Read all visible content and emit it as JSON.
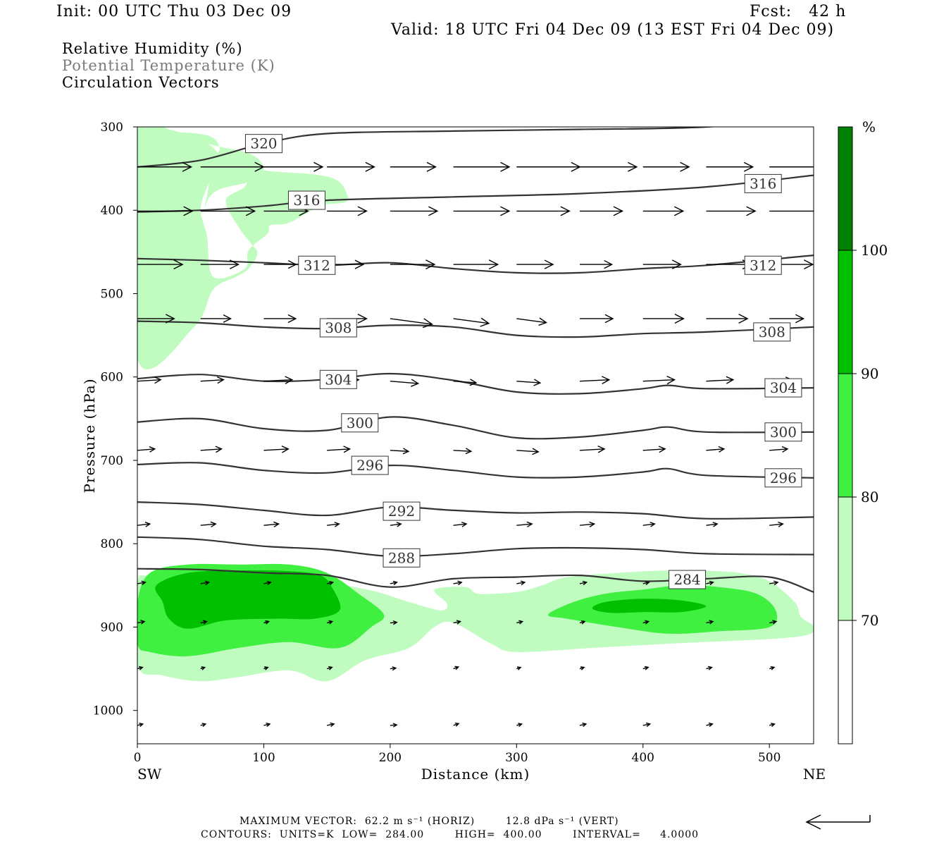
{
  "header": {
    "init": "Init: 00 UTC Thu 03 Dec 09",
    "fcst": "Fcst:   42 h",
    "valid": "Valid: 18 UTC Fri 04 Dec 09 (13 EST Fri 04 Dec 09)"
  },
  "fields": [
    {
      "label": "Relative Humidity (%)",
      "color": "#000000"
    },
    {
      "label": "Potential Temperature (K)",
      "color": "#7a7a7a"
    },
    {
      "label": "Circulation Vectors",
      "color": "#000000"
    }
  ],
  "footer": {
    "vector_line": "MAXIMUM VECTOR:  62.2 m s⁻¹ (HORIZ)        12.8 dPa s⁻¹ (VERT)",
    "contour_line": "CONTOURS:  UNITS=K  LOW=  284.00        HIGH=  400.00        INTERVAL=     4.0000"
  },
  "chart_data": {
    "type": "cross-section",
    "xlabel": "Distance (km)",
    "ylabel": "Pressure (hPa)",
    "x_ticks": [
      0,
      100,
      200,
      300,
      400,
      500
    ],
    "y_ticks": [
      300,
      400,
      500,
      600,
      700,
      800,
      900,
      1000
    ],
    "xlim": [
      0,
      535
    ],
    "ylim": [
      300,
      1040
    ],
    "x_end_labels": {
      "left": "SW",
      "right": "NE"
    },
    "colorbar": {
      "unit": "%",
      "levels": [
        70,
        80,
        90,
        100
      ],
      "colors": [
        "#ffffff",
        "#c0fcc0",
        "#40f040",
        "#00c000",
        "#008000"
      ]
    },
    "theta_contours": [
      {
        "value": 320,
        "label": "320",
        "points": [
          [
            0,
            348
          ],
          [
            50,
            340
          ],
          [
            100,
            320
          ],
          [
            150,
            308
          ],
          [
            250,
            305
          ],
          [
            350,
            303
          ],
          [
            450,
            300
          ],
          [
            535,
            288
          ]
        ],
        "label_pos": [
          [
            100,
            320
          ]
        ]
      },
      {
        "value": 316,
        "label": "316",
        "points": [
          [
            0,
            402
          ],
          [
            50,
            400
          ],
          [
            100,
            395
          ],
          [
            150,
            388
          ],
          [
            250,
            384
          ],
          [
            350,
            380
          ],
          [
            450,
            372
          ],
          [
            535,
            358
          ]
        ],
        "label_pos": [
          [
            134,
            388
          ],
          [
            495,
            368
          ]
        ]
      },
      {
        "value": 312,
        "label": "312",
        "points": [
          [
            0,
            458
          ],
          [
            50,
            460
          ],
          [
            100,
            463
          ],
          [
            150,
            466
          ],
          [
            200,
            463
          ],
          [
            250,
            470
          ],
          [
            300,
            475
          ],
          [
            350,
            475
          ],
          [
            400,
            470
          ],
          [
            450,
            466
          ],
          [
            535,
            454
          ]
        ],
        "label_pos": [
          [
            142,
            466
          ],
          [
            495,
            466
          ]
        ]
      },
      {
        "value": 308,
        "label": "308",
        "points": [
          [
            0,
            533
          ],
          [
            50,
            535
          ],
          [
            100,
            540
          ],
          [
            150,
            542
          ],
          [
            200,
            538
          ],
          [
            250,
            540
          ],
          [
            300,
            550
          ],
          [
            350,
            552
          ],
          [
            400,
            548
          ],
          [
            450,
            546
          ],
          [
            535,
            540
          ]
        ],
        "label_pos": [
          [
            159,
            541
          ],
          [
            502,
            546
          ]
        ]
      },
      {
        "value": 304,
        "label": "304",
        "points": [
          [
            0,
            602
          ],
          [
            50,
            597
          ],
          [
            100,
            605
          ],
          [
            150,
            603
          ],
          [
            200,
            596
          ],
          [
            250,
            604
          ],
          [
            300,
            618
          ],
          [
            350,
            620
          ],
          [
            400,
            614
          ],
          [
            420,
            610
          ],
          [
            450,
            614
          ],
          [
            535,
            613
          ]
        ],
        "label_pos": [
          [
            159,
            603
          ],
          [
            511,
            613
          ]
        ]
      },
      {
        "value": 300,
        "label": "300",
        "points": [
          [
            0,
            654
          ],
          [
            50,
            650
          ],
          [
            100,
            662
          ],
          [
            150,
            664
          ],
          [
            200,
            648
          ],
          [
            250,
            658
          ],
          [
            300,
            673
          ],
          [
            350,
            672
          ],
          [
            400,
            664
          ],
          [
            420,
            660
          ],
          [
            450,
            666
          ],
          [
            535,
            666
          ]
        ],
        "label_pos": [
          [
            176,
            655
          ],
          [
            511,
            666
          ]
        ]
      },
      {
        "value": 296,
        "label": "296",
        "points": [
          [
            0,
            705
          ],
          [
            50,
            703
          ],
          [
            100,
            712
          ],
          [
            150,
            715
          ],
          [
            200,
            706
          ],
          [
            250,
            712
          ],
          [
            300,
            720
          ],
          [
            350,
            720
          ],
          [
            400,
            714
          ],
          [
            420,
            710
          ],
          [
            450,
            718
          ],
          [
            535,
            721
          ]
        ],
        "label_pos": [
          [
            184,
            706
          ],
          [
            511,
            721
          ]
        ]
      },
      {
        "value": 292,
        "label": "292",
        "points": [
          [
            0,
            750
          ],
          [
            50,
            753
          ],
          [
            100,
            760
          ],
          [
            150,
            766
          ],
          [
            200,
            756
          ],
          [
            250,
            760
          ],
          [
            300,
            763
          ],
          [
            350,
            762
          ],
          [
            400,
            764
          ],
          [
            450,
            770
          ],
          [
            535,
            768
          ]
        ],
        "label_pos": [
          [
            209,
            761
          ]
        ]
      },
      {
        "value": 288,
        "label": "288",
        "points": [
          [
            0,
            792
          ],
          [
            50,
            795
          ],
          [
            100,
            803
          ],
          [
            150,
            807
          ],
          [
            200,
            815
          ],
          [
            250,
            812
          ],
          [
            300,
            806
          ],
          [
            350,
            805
          ],
          [
            400,
            807
          ],
          [
            450,
            812
          ],
          [
            535,
            813
          ]
        ],
        "label_pos": [
          [
            209,
            817
          ]
        ]
      },
      {
        "value": 284,
        "label": "284",
        "points": [
          [
            0,
            830
          ],
          [
            50,
            831
          ],
          [
            100,
            835
          ],
          [
            150,
            838
          ],
          [
            200,
            852
          ],
          [
            250,
            842
          ],
          [
            300,
            840
          ],
          [
            350,
            838
          ],
          [
            400,
            845
          ],
          [
            450,
            842
          ],
          [
            500,
            840
          ],
          [
            535,
            858
          ]
        ],
        "label_pos": [
          [
            435,
            843
          ]
        ]
      }
    ],
    "rh_regions": [
      {
        "rh": 70,
        "points": [
          [
            0,
            300
          ],
          [
            30,
            310
          ],
          [
            60,
            322
          ],
          [
            90,
            333
          ],
          [
            100,
            350
          ],
          [
            90,
            365
          ],
          [
            65,
            375
          ],
          [
            55,
            390
          ],
          [
            50,
            425
          ],
          [
            60,
            345
          ],
          [
            65,
            325
          ],
          [
            55,
            310
          ],
          [
            20,
            305
          ],
          [
            0,
            300
          ]
        ]
      },
      {
        "rh": 70,
        "points": [
          [
            0,
            300
          ],
          [
            25,
            303
          ],
          [
            45,
            313
          ],
          [
            60,
            325
          ],
          [
            65,
            343
          ],
          [
            55,
            373
          ],
          [
            50,
            400
          ],
          [
            55,
            430
          ],
          [
            60,
            480
          ],
          [
            85,
            470
          ],
          [
            88,
            448
          ],
          [
            103,
            428
          ],
          [
            105,
            418
          ],
          [
            120,
            415
          ],
          [
            145,
            395
          ],
          [
            165,
            390
          ],
          [
            165,
            378
          ],
          [
            158,
            364
          ],
          [
            140,
            357
          ],
          [
            100,
            352
          ],
          [
            90,
            342
          ],
          [
            86,
            370
          ],
          [
            70,
            388
          ],
          [
            80,
            420
          ],
          [
            90,
            440
          ],
          [
            95,
            452
          ],
          [
            88,
            470
          ],
          [
            78,
            480
          ],
          [
            60,
            495
          ],
          [
            45,
            540
          ],
          [
            0,
            578
          ]
        ]
      },
      {
        "rh": 70,
        "points": [
          [
            0,
            848
          ],
          [
            10,
            838
          ],
          [
            40,
            828
          ],
          [
            80,
            830
          ],
          [
            130,
            835
          ],
          [
            160,
            848
          ],
          [
            190,
            858
          ],
          [
            215,
            870
          ],
          [
            240,
            880
          ],
          [
            245,
            872
          ],
          [
            235,
            855
          ],
          [
            260,
            852
          ],
          [
            270,
            860
          ],
          [
            300,
            858
          ],
          [
            320,
            850
          ],
          [
            340,
            840
          ],
          [
            380,
            835
          ],
          [
            420,
            832
          ],
          [
            460,
            833
          ],
          [
            480,
            836
          ],
          [
            500,
            845
          ],
          [
            520,
            870
          ],
          [
            525,
            888
          ],
          [
            535,
            900
          ],
          [
            520,
            912
          ],
          [
            420,
            920
          ],
          [
            360,
            925
          ],
          [
            300,
            930
          ],
          [
            280,
            920
          ],
          [
            250,
            895
          ],
          [
            235,
            900
          ],
          [
            215,
            925
          ],
          [
            180,
            940
          ],
          [
            150,
            965
          ],
          [
            120,
            952
          ],
          [
            80,
            960
          ],
          [
            50,
            965
          ],
          [
            20,
            958
          ],
          [
            0,
            945
          ]
        ]
      },
      {
        "rh": 80,
        "points": [
          [
            10,
            835
          ],
          [
            40,
            825
          ],
          [
            80,
            825
          ],
          [
            120,
            825
          ],
          [
            150,
            835
          ],
          [
            175,
            860
          ],
          [
            195,
            885
          ],
          [
            185,
            900
          ],
          [
            160,
            925
          ],
          [
            120,
            918
          ],
          [
            80,
            925
          ],
          [
            40,
            935
          ],
          [
            10,
            930
          ],
          [
            0,
            920
          ],
          [
            0,
            870
          ]
        ]
      },
      {
        "rh": 80,
        "points": [
          [
            325,
            885
          ],
          [
            345,
            870
          ],
          [
            370,
            860
          ],
          [
            400,
            855
          ],
          [
            430,
            850
          ],
          [
            460,
            852
          ],
          [
            490,
            860
          ],
          [
            505,
            880
          ],
          [
            500,
            900
          ],
          [
            460,
            905
          ],
          [
            420,
            908
          ],
          [
            380,
            900
          ],
          [
            340,
            890
          ]
        ]
      },
      {
        "rh": 90,
        "points": [
          [
            15,
            850
          ],
          [
            40,
            835
          ],
          [
            80,
            832
          ],
          [
            120,
            833
          ],
          [
            145,
            838
          ],
          [
            155,
            855
          ],
          [
            160,
            880
          ],
          [
            140,
            890
          ],
          [
            110,
            890
          ],
          [
            70,
            892
          ],
          [
            40,
            902
          ],
          [
            25,
            890
          ],
          [
            20,
            870
          ]
        ]
      },
      {
        "rh": 90,
        "points": [
          [
            360,
            878
          ],
          [
            370,
            870
          ],
          [
            400,
            866
          ],
          [
            430,
            868
          ],
          [
            450,
            875
          ],
          [
            430,
            882
          ],
          [
            400,
            882
          ],
          [
            375,
            883
          ]
        ]
      }
    ],
    "vector_rows_hpa": [
      348,
      401,
      465,
      530,
      605,
      688,
      778,
      848,
      895,
      950,
      1018
    ]
  }
}
